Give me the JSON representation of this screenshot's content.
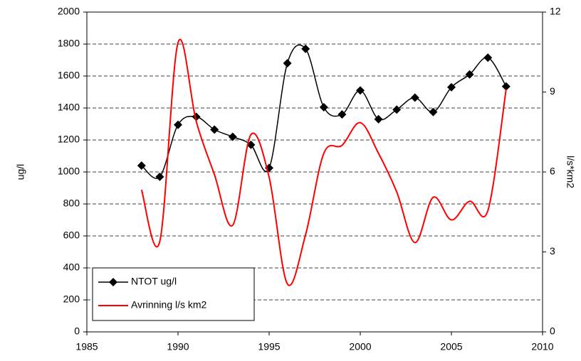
{
  "chart_data": {
    "type": "line",
    "y_label": "ug/l",
    "y2_label": "l/s*km2",
    "x": [
      1988,
      1989,
      1990,
      1991,
      1992,
      1993,
      1994,
      1995,
      1996,
      1997,
      1998,
      1999,
      2000,
      2001,
      2002,
      2003,
      2004,
      2005,
      2006,
      2007,
      2008
    ],
    "series": [
      {
        "name": "NTOT ug/l",
        "color": "#000000",
        "marker": "diamond",
        "axis": "y",
        "values": [
          1040,
          970,
          1295,
          1345,
          1265,
          1220,
          1170,
          1025,
          1680,
          1770,
          1405,
          1360,
          1510,
          1330,
          1390,
          1465,
          1375,
          1530,
          1610,
          1715,
          1535
        ]
      },
      {
        "name": "Avrinning l/s km2",
        "color": "#ff0000",
        "axis": "y2",
        "values": [
          5.33,
          3.39,
          10.85,
          7.9,
          5.9,
          4.0,
          7.4,
          5.8,
          1.8,
          3.65,
          6.7,
          7.0,
          7.85,
          6.7,
          5.25,
          3.35,
          5.05,
          4.2,
          4.9,
          4.55,
          9.1
        ]
      }
    ],
    "xlim": [
      1985,
      2010
    ],
    "xticks": [
      1985,
      1990,
      1995,
      2000,
      2005,
      2010
    ],
    "ylim": [
      0,
      2000
    ],
    "yticks": [
      0,
      200,
      400,
      600,
      800,
      1000,
      1200,
      1400,
      1600,
      1800,
      2000
    ],
    "y2lim": [
      0,
      12
    ],
    "y2ticks": [
      0,
      3,
      6,
      9,
      12
    ],
    "grid": true,
    "smooth": true,
    "legend": "lower left"
  }
}
